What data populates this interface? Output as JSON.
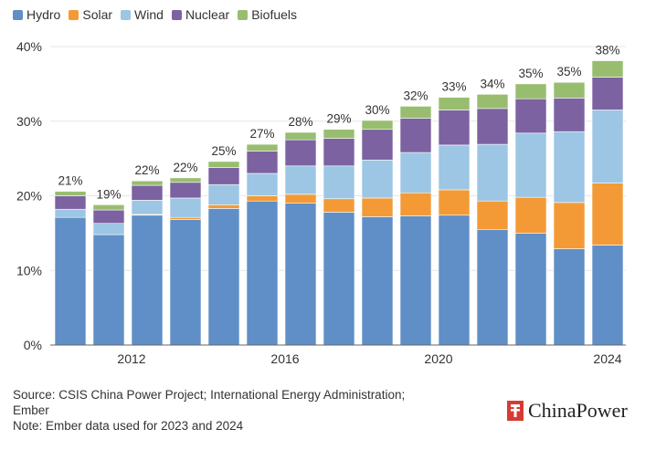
{
  "colors": {
    "Hydro": "#5f8fc6",
    "Solar": "#f39a36",
    "Wind": "#9cc6e3",
    "Nuclear": "#7c62a0",
    "Biofuels": "#98bd6f",
    "grid": "#e6e6e6",
    "axis": "#666666",
    "logo_red": "#d63b33"
  },
  "chart_data": {
    "type": "bar",
    "stacked": true,
    "title": "",
    "xlabel": "",
    "ylabel": "",
    "ylim": [
      0,
      40
    ],
    "grid": true,
    "legend_position": "top-left",
    "y_ticks": [
      "0%",
      "10%",
      "20%",
      "30%",
      "40%"
    ],
    "y_tick_values": [
      0,
      10,
      20,
      30,
      40
    ],
    "x_tick_labels": [
      {
        "label": "2012",
        "index": 2
      },
      {
        "label": "2016",
        "index": 6
      },
      {
        "label": "2020",
        "index": 10
      },
      {
        "label": "2024",
        "index": 14
      }
    ],
    "categories": [
      "2010",
      "2011",
      "2012",
      "2013",
      "2014",
      "2015",
      "2016",
      "2017",
      "2018",
      "2019",
      "2020",
      "2021",
      "2022",
      "2023",
      "2024"
    ],
    "series": [
      {
        "name": "Hydro",
        "values": [
          17.1,
          14.8,
          17.4,
          16.8,
          18.3,
          19.3,
          19.0,
          17.8,
          17.2,
          17.3,
          17.4,
          15.5,
          15.0,
          12.9,
          13.4
        ]
      },
      {
        "name": "Solar",
        "values": [
          0.0,
          0.0,
          0.1,
          0.3,
          0.5,
          0.7,
          1.2,
          1.8,
          2.5,
          3.1,
          3.4,
          3.8,
          4.8,
          6.2,
          8.3
        ]
      },
      {
        "name": "Wind",
        "values": [
          1.1,
          1.5,
          1.9,
          2.6,
          2.7,
          3.0,
          3.8,
          4.4,
          5.1,
          5.4,
          6.0,
          7.6,
          8.6,
          9.5,
          9.8
        ]
      },
      {
        "name": "Nuclear",
        "values": [
          1.8,
          1.8,
          2.0,
          2.1,
          2.3,
          3.0,
          3.5,
          3.7,
          4.1,
          4.6,
          4.7,
          4.8,
          4.6,
          4.5,
          4.4
        ]
      },
      {
        "name": "Biofuels",
        "values": [
          0.6,
          0.7,
          0.6,
          0.6,
          0.8,
          0.9,
          1.0,
          1.2,
          1.2,
          1.6,
          1.7,
          1.9,
          2.0,
          2.1,
          2.2
        ]
      }
    ],
    "totals": [
      "21%",
      "19%",
      "22%",
      "22%",
      "25%",
      "27%",
      "28%",
      "29%",
      "30%",
      "32%",
      "33%",
      "34%",
      "35%",
      "35%",
      "38%"
    ],
    "total_values": [
      21,
      19,
      22,
      22,
      25,
      27,
      28,
      29,
      30,
      32,
      33,
      34,
      35,
      35,
      38
    ]
  },
  "legend": [
    {
      "label": "Hydro",
      "color": "#5f8fc6"
    },
    {
      "label": "Solar",
      "color": "#f39a36"
    },
    {
      "label": "Wind",
      "color": "#9cc6e3"
    },
    {
      "label": "Nuclear",
      "color": "#7c62a0"
    },
    {
      "label": "Biofuels",
      "color": "#98bd6f"
    }
  ],
  "footer": {
    "source_line1": "Source: CSIS China Power Project; International Energy Administration;",
    "source_line2": "Ember",
    "note": "Note: Ember data used for 2023 and 2024"
  },
  "logo": {
    "text": "ChinaPower"
  }
}
